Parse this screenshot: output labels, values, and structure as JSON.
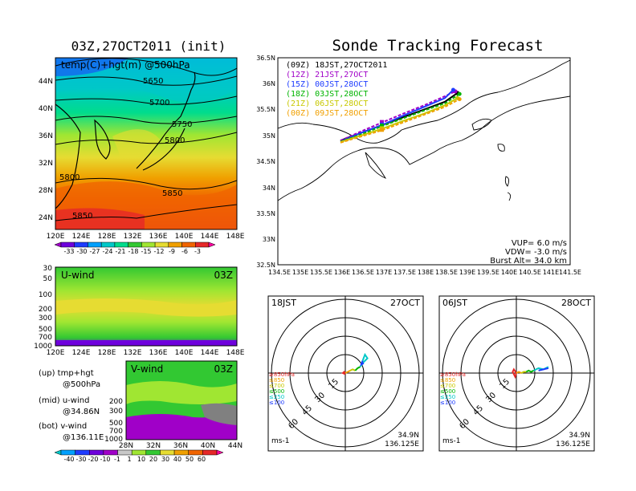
{
  "header": {
    "left_title": "03Z,27OCT2011 (init)",
    "right_title": "Sonde Tracking Forecast"
  },
  "top_map": {
    "field_label": "temp(C)+hgt(m) @500hPa",
    "contour_labels": [
      "5650",
      "5700",
      "5750",
      "5800",
      "5800",
      "5850",
      "5850"
    ],
    "lat_ticks": [
      "44N",
      "40N",
      "36N",
      "32N",
      "28N",
      "24N"
    ],
    "lon_ticks": [
      "120E",
      "124E",
      "128E",
      "132E",
      "136E",
      "140E",
      "144E",
      "148E"
    ],
    "colorbar_labels": [
      "-33",
      "-30",
      "-27",
      "-24",
      "-21",
      "-18",
      "-15",
      "-12",
      "-9",
      "-6",
      "-3"
    ],
    "colorbar_colors": [
      "#a000c8",
      "#6e00dc",
      "#1e3cff",
      "#00a0ff",
      "#00c8c8",
      "#00dc8c",
      "#32c832",
      "#a0e632",
      "#e6dc32",
      "#f0a000",
      "#f06400",
      "#e62828",
      "#ff00a0"
    ]
  },
  "u_panel": {
    "label": "U-wind",
    "time": "03Z",
    "y_ticks": [
      "30",
      "50",
      "100",
      "200",
      "300",
      "500",
      "700",
      "1000"
    ],
    "x_ticks": [
      "120E",
      "124E",
      "128E",
      "132E",
      "136E",
      "140E",
      "144E",
      "148E"
    ]
  },
  "v_panel": {
    "label": "V-wind",
    "time": "03Z",
    "y_ticks": [
      "200",
      "300",
      "500",
      "700",
      "1000"
    ],
    "x_ticks": [
      "28N",
      "32N",
      "36N",
      "40N",
      "44N"
    ],
    "colorbar_labels": [
      "-40",
      "-30",
      "-20",
      "-10",
      "-1",
      "1",
      "10",
      "20",
      "30",
      "40",
      "50",
      "60"
    ],
    "colorbar_colors": [
      "#00c8c8",
      "#00a0ff",
      "#1e3cff",
      "#6e00dc",
      "#a000c8",
      "#c8c8c8",
      "#a0e632",
      "#32c832",
      "#e6dc32",
      "#f0a000",
      "#f06400",
      "#e62828",
      "#ff00a0"
    ]
  },
  "legend_notes": {
    "up1": "(up) tmp+hgt",
    "up2": "@500hPa",
    "mid1": "(mid) u-wind",
    "mid2": "@34.86N",
    "bot1": "(bot) v-wind",
    "bot2": "@136.11E"
  },
  "track_map": {
    "lat_ticks": [
      "36.5N",
      "36N",
      "35.5N",
      "35N",
      "34.5N",
      "34N",
      "33.5N",
      "33N",
      "32.5N"
    ],
    "lon_ticks": [
      "134.5E",
      "135E",
      "135.5E",
      "136E",
      "136.5E",
      "137E",
      "137.5E",
      "138E",
      "138.5E",
      "139E",
      "139.5E",
      "140E",
      "140.5E",
      "141E",
      "141.5E"
    ],
    "runs": [
      {
        "label": "(09Z)  18JST,27OCT2011",
        "color": "#000000"
      },
      {
        "label": "(12Z)  21JST,27OCT",
        "color": "#a000c8"
      },
      {
        "label": "(15Z)  00JST,28OCT",
        "color": "#1e3cff"
      },
      {
        "label": "(18Z)  03JST,28OCT",
        "color": "#00b400"
      },
      {
        "label": "(21Z)  06JST,28OCT",
        "color": "#c8c800"
      },
      {
        "label": "(00Z)  09JST,28OCT",
        "color": "#f0a000"
      }
    ],
    "params": {
      "vup": "VUP=  6.0  m/s",
      "vdw": "VDW= -3.0  m/s",
      "burst": "Burst Alt=  34.0  km"
    }
  },
  "hodo_left": {
    "time": "18JST",
    "date": "27OCT",
    "ring_labels": [
      "15",
      "30",
      "45",
      "60"
    ],
    "legend": [
      {
        "text": "≥850hPa",
        "color": "#e62828"
      },
      {
        "text": "≤850",
        "color": "#f0a000"
      },
      {
        "text": "≤700",
        "color": "#c8c800"
      },
      {
        "text": "≤500",
        "color": "#00b400"
      },
      {
        "text": "≤250",
        "color": "#00c8c8"
      },
      {
        "text": "≤100",
        "color": "#1e3cff"
      }
    ],
    "unit": "ms-1",
    "coord1": "34.9N",
    "coord2": "136.125E"
  },
  "hodo_right": {
    "time": "06JST",
    "date": "28OCT",
    "ring_labels": [
      "15",
      "30",
      "45",
      "60"
    ],
    "legend": [
      {
        "text": "≥850hPa",
        "color": "#e62828"
      },
      {
        "text": "≤850",
        "color": "#f0a000"
      },
      {
        "text": "≤700",
        "color": "#c8c800"
      },
      {
        "text": "≤500",
        "color": "#00b400"
      },
      {
        "text": "≤250",
        "color": "#00c8c8"
      },
      {
        "text": "≤100",
        "color": "#1e3cff"
      }
    ],
    "unit": "ms-1",
    "coord1": "34.9N",
    "coord2": "136.125E"
  },
  "chart_data": [
    {
      "type": "line",
      "title": "Sonde Tracking Forecast",
      "xlim": [
        134.5,
        141.5
      ],
      "ylim": [
        32.5,
        36.5
      ],
      "series": [
        {
          "name": "(09Z)  18JST,27OCT2011",
          "x": [
            136.0,
            136.5,
            137.0,
            137.5,
            138.0,
            138.5,
            138.8
          ],
          "y": [
            34.9,
            35.05,
            35.2,
            35.35,
            35.5,
            35.65,
            35.82
          ]
        },
        {
          "name": "(12Z)  21JST,27OCT",
          "x": [
            136.0,
            136.5,
            137.0,
            137.5,
            138.0,
            138.4,
            138.75
          ],
          "y": [
            34.9,
            35.08,
            35.25,
            35.42,
            35.58,
            35.72,
            35.85
          ]
        },
        {
          "name": "(15Z)  00JST,28OCT",
          "x": [
            136.0,
            136.5,
            137.0,
            137.5,
            138.0,
            138.5,
            138.7
          ],
          "y": [
            34.88,
            35.05,
            35.2,
            35.38,
            35.55,
            35.72,
            35.88
          ]
        },
        {
          "name": "(18Z)  03JST,28OCT",
          "x": [
            136.0,
            136.5,
            137.0,
            137.5,
            138.0,
            138.5,
            138.85
          ],
          "y": [
            34.88,
            35.02,
            35.18,
            35.33,
            35.48,
            35.62,
            35.8
          ]
        },
        {
          "name": "(21Z)  06JST,28OCT",
          "x": [
            136.0,
            136.5,
            137.0,
            137.5,
            138.0,
            138.5,
            138.8
          ],
          "y": [
            34.87,
            35.0,
            35.13,
            35.28,
            35.42,
            35.58,
            35.72
          ]
        },
        {
          "name": "(00Z)  09JST,28OCT",
          "x": [
            136.0,
            136.5,
            137.0,
            137.5,
            138.0,
            138.5,
            138.85
          ],
          "y": [
            34.86,
            34.98,
            35.1,
            35.25,
            35.4,
            35.55,
            35.7
          ]
        }
      ]
    },
    {
      "type": "line",
      "title": "18JST 27OCT",
      "series": [
        {
          "name": "≥850hPa",
          "u": [
            0,
            -1,
            -2,
            0
          ],
          "v": [
            0,
            1,
            0,
            -1
          ]
        },
        {
          "name": "≤850",
          "u": [
            0,
            2,
            4
          ],
          "v": [
            0,
            1,
            2
          ]
        },
        {
          "name": "≤700",
          "u": [
            4,
            6,
            8
          ],
          "v": [
            2,
            3,
            2
          ]
        },
        {
          "name": "≤500",
          "u": [
            8,
            10,
            12
          ],
          "v": [
            2,
            4,
            5
          ]
        },
        {
          "name": "≤250",
          "u": [
            12,
            15,
            18,
            16,
            14
          ],
          "v": [
            5,
            9,
            12,
            15,
            10
          ]
        },
        {
          "name": "≤100",
          "u": [
            14,
            13,
            15
          ],
          "v": [
            10,
            7,
            8
          ]
        }
      ]
    },
    {
      "type": "line",
      "title": "06JST 28OCT",
      "series": [
        {
          "name": "≥850hPa",
          "u": [
            0,
            -2,
            -3,
            -1,
            0
          ],
          "v": [
            0,
            3,
            1,
            -3,
            0
          ]
        },
        {
          "name": "≤850",
          "u": [
            0,
            2,
            4
          ],
          "v": [
            0,
            1,
            0
          ]
        },
        {
          "name": "≤700",
          "u": [
            4,
            6,
            8
          ],
          "v": [
            0,
            1,
            1
          ]
        },
        {
          "name": "≤500",
          "u": [
            8,
            10,
            12,
            14
          ],
          "v": [
            1,
            2,
            1,
            2
          ]
        },
        {
          "name": "≤250",
          "u": [
            14,
            18,
            22,
            26
          ],
          "v": [
            2,
            4,
            3,
            5
          ]
        },
        {
          "name": "≤100",
          "u": [
            18,
            22,
            26
          ],
          "v": [
            2,
            3,
            4
          ]
        }
      ]
    }
  ]
}
